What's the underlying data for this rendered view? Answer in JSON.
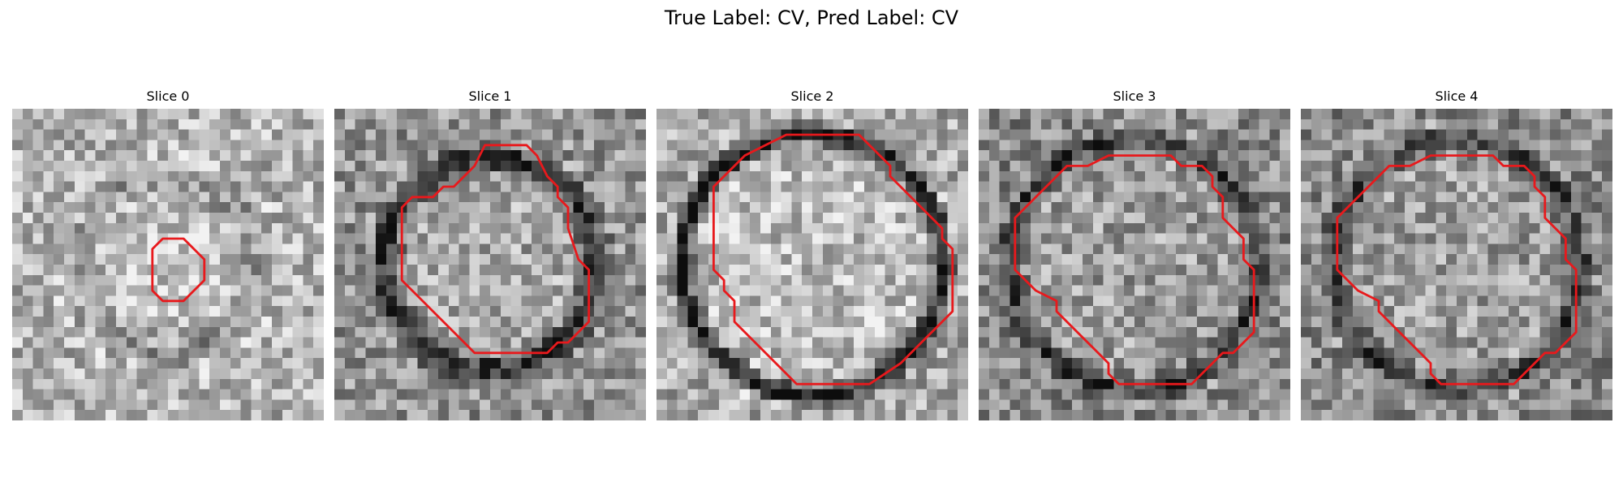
{
  "figure": {
    "title": "True Label: CV, Pred Label: CV",
    "contour_color": "#e8191c",
    "image_colormap": "gray"
  },
  "slices": [
    {
      "title": "Slice 0",
      "ring_strength": 0.22,
      "ring_radius": 0.28,
      "ring_width": 0.09,
      "interior_tone": 0.78,
      "contour": [
        [
          14.5,
          12.5
        ],
        [
          16.5,
          12.5
        ],
        [
          18.5,
          14.5
        ],
        [
          18.5,
          16.5
        ],
        [
          16.5,
          18.5
        ],
        [
          14.5,
          18.5
        ],
        [
          13.5,
          17.5
        ],
        [
          13.5,
          13.5
        ]
      ]
    },
    {
      "title": "Slice 1",
      "ring_strength": 0.55,
      "ring_radius": 0.34,
      "ring_width": 0.07,
      "interior_tone": 0.66,
      "contour": [
        [
          14.5,
          3.5
        ],
        [
          18.5,
          3.5
        ],
        [
          19.5,
          4.5
        ],
        [
          20.5,
          6.5
        ],
        [
          21.5,
          7.5
        ],
        [
          21.5,
          8.5
        ],
        [
          22.5,
          9.5
        ],
        [
          22.5,
          11.5
        ],
        [
          23.5,
          14.5
        ],
        [
          24.5,
          15.5
        ],
        [
          24.5,
          20.5
        ],
        [
          22.5,
          22.5
        ],
        [
          21.5,
          22.5
        ],
        [
          20.5,
          23.5
        ],
        [
          13.5,
          23.5
        ],
        [
          6.5,
          16.5
        ],
        [
          6.5,
          9.5
        ],
        [
          7.5,
          8.5
        ],
        [
          9.5,
          8.5
        ],
        [
          10.5,
          7.5
        ],
        [
          11.5,
          7.5
        ],
        [
          13.5,
          5.5
        ]
      ]
    },
    {
      "title": "Slice 2",
      "ring_strength": 0.72,
      "ring_radius": 0.42,
      "ring_width": 0.05,
      "interior_tone": 0.74,
      "contour": [
        [
          12.5,
          2.5
        ],
        [
          19.5,
          2.5
        ],
        [
          21.5,
          4.5
        ],
        [
          22.5,
          5.5
        ],
        [
          22.5,
          6.5
        ],
        [
          23.5,
          7.5
        ],
        [
          25.5,
          9.5
        ],
        [
          27.5,
          11.5
        ],
        [
          27.5,
          12.5
        ],
        [
          28.5,
          13.5
        ],
        [
          28.5,
          19.5
        ],
        [
          26.5,
          21.5
        ],
        [
          23.5,
          24.5
        ],
        [
          20.5,
          26.5
        ],
        [
          13.5,
          26.5
        ],
        [
          9.5,
          22.5
        ],
        [
          7.5,
          20.5
        ],
        [
          7.5,
          18.5
        ],
        [
          6.5,
          17.5
        ],
        [
          6.5,
          16.5
        ],
        [
          5.5,
          15.5
        ],
        [
          5.5,
          13.5
        ],
        [
          5.5,
          7.5
        ],
        [
          8.5,
          4.5
        ],
        [
          10.5,
          3.5
        ]
      ]
    },
    {
      "title": "Slice 3",
      "ring_strength": 0.45,
      "ring_radius": 0.4,
      "ring_width": 0.06,
      "interior_tone": 0.62,
      "contour": [
        [
          12.5,
          4.5
        ],
        [
          18.5,
          4.5
        ],
        [
          19.5,
          5.5
        ],
        [
          21.5,
          5.5
        ],
        [
          22.5,
          6.5
        ],
        [
          22.5,
          7.5
        ],
        [
          23.5,
          8.5
        ],
        [
          23.5,
          10.5
        ],
        [
          24.5,
          11.5
        ],
        [
          25.5,
          12.5
        ],
        [
          25.5,
          14.5
        ],
        [
          26.5,
          15.5
        ],
        [
          26.5,
          21.5
        ],
        [
          24.5,
          23.5
        ],
        [
          23.5,
          23.5
        ],
        [
          22.5,
          24.5
        ],
        [
          21.5,
          25.5
        ],
        [
          20.5,
          26.5
        ],
        [
          13.5,
          26.5
        ],
        [
          12.5,
          25.5
        ],
        [
          12.5,
          24.5
        ],
        [
          11.5,
          23.5
        ],
        [
          10.5,
          22.5
        ],
        [
          9.5,
          21.5
        ],
        [
          7.5,
          19.5
        ],
        [
          7.5,
          18.5
        ],
        [
          5.5,
          17.5
        ],
        [
          3.5,
          15.5
        ],
        [
          3.5,
          10.5
        ],
        [
          5.5,
          8.5
        ],
        [
          7.5,
          6.5
        ],
        [
          8.5,
          5.5
        ],
        [
          10.5,
          5.5
        ]
      ]
    },
    {
      "title": "Slice 4",
      "ring_strength": 0.4,
      "ring_radius": 0.4,
      "ring_width": 0.06,
      "interior_tone": 0.62,
      "contour": [
        [
          12.5,
          4.5
        ],
        [
          18.5,
          4.5
        ],
        [
          19.5,
          5.5
        ],
        [
          21.5,
          5.5
        ],
        [
          22.5,
          6.5
        ],
        [
          22.5,
          7.5
        ],
        [
          23.5,
          8.5
        ],
        [
          23.5,
          10.5
        ],
        [
          24.5,
          11.5
        ],
        [
          25.5,
          12.5
        ],
        [
          25.5,
          14.5
        ],
        [
          26.5,
          15.5
        ],
        [
          26.5,
          21.5
        ],
        [
          24.5,
          23.5
        ],
        [
          23.5,
          23.5
        ],
        [
          22.5,
          24.5
        ],
        [
          21.5,
          25.5
        ],
        [
          20.5,
          26.5
        ],
        [
          13.5,
          26.5
        ],
        [
          12.5,
          25.5
        ],
        [
          12.5,
          24.5
        ],
        [
          11.5,
          23.5
        ],
        [
          10.5,
          22.5
        ],
        [
          9.5,
          21.5
        ],
        [
          7.5,
          19.5
        ],
        [
          7.5,
          18.5
        ],
        [
          5.5,
          17.5
        ],
        [
          3.5,
          15.5
        ],
        [
          3.5,
          10.5
        ],
        [
          5.5,
          8.5
        ],
        [
          7.5,
          6.5
        ],
        [
          8.5,
          5.5
        ],
        [
          10.5,
          5.5
        ]
      ]
    }
  ]
}
